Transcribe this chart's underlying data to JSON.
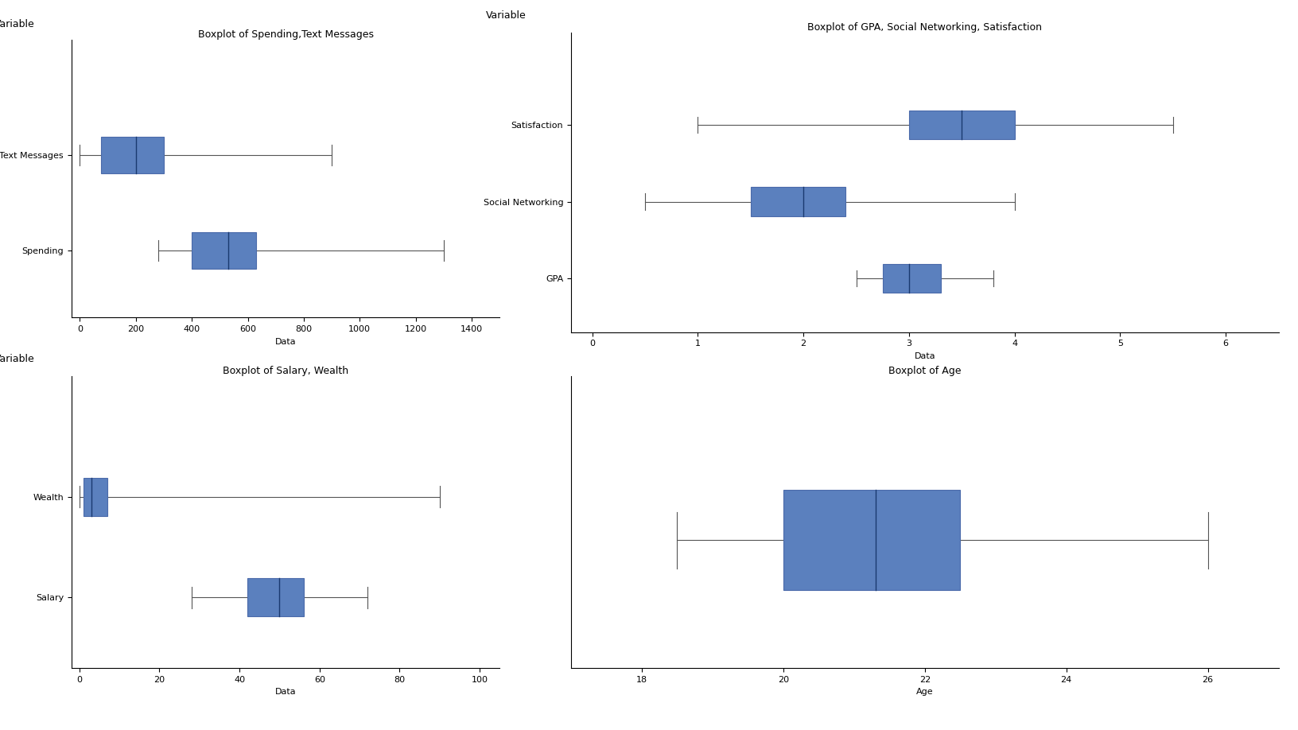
{
  "plot1": {
    "title": "Boxplot of Spending,Text Messages",
    "var_label": "Variable",
    "xlabel": "Data",
    "xlim": [
      -30,
      1500
    ],
    "xticks": [
      0,
      200,
      400,
      600,
      800,
      1000,
      1200,
      1400
    ],
    "boxes": [
      {
        "label": "Text Messages",
        "q1": 75,
        "median": 200,
        "q3": 300,
        "whisker_low": 0,
        "whisker_high": 900
      },
      {
        "label": "Spending",
        "q1": 400,
        "median": 530,
        "q3": 630,
        "whisker_low": 280,
        "whisker_high": 1300
      }
    ]
  },
  "plot2": {
    "title": "Boxplot of GPA, Social Networking, Satisfaction",
    "var_label": "Variable",
    "xlabel": "Data",
    "xlim": [
      -0.2,
      6.5
    ],
    "xticks": [
      0,
      1,
      2,
      3,
      4,
      5,
      6
    ],
    "boxes": [
      {
        "label": "Satisfaction",
        "q1": 3.0,
        "median": 3.5,
        "q3": 4.0,
        "whisker_low": 1.0,
        "whisker_high": 5.5
      },
      {
        "label": "Social Networking",
        "q1": 1.5,
        "median": 2.0,
        "q3": 2.4,
        "whisker_low": 0.5,
        "whisker_high": 4.0
      },
      {
        "label": "GPA",
        "q1": 2.75,
        "median": 3.0,
        "q3": 3.3,
        "whisker_low": 2.5,
        "whisker_high": 3.8
      }
    ]
  },
  "plot3": {
    "title": "Boxplot of Salary, Wealth",
    "var_label": "Variable",
    "xlabel": "Data",
    "xlim": [
      -2,
      105
    ],
    "xticks": [
      0,
      20,
      40,
      60,
      80,
      100
    ],
    "boxes": [
      {
        "label": "Wealth",
        "q1": 1,
        "median": 3,
        "q3": 7,
        "whisker_low": 0,
        "whisker_high": 90
      },
      {
        "label": "Salary",
        "q1": 42,
        "median": 50,
        "q3": 56,
        "whisker_low": 28,
        "whisker_high": 72
      }
    ]
  },
  "plot4": {
    "title": "Boxplot of Age",
    "xlabel": "Age",
    "xlim": [
      17,
      27
    ],
    "xticks": [
      18,
      20,
      22,
      24,
      26
    ],
    "boxes": [
      {
        "label": "Age",
        "q1": 20.0,
        "median": 21.3,
        "q3": 22.5,
        "whisker_low": 18.5,
        "whisker_high": 26.0
      }
    ]
  },
  "box_color": "#5b80be",
  "box_edge_color": "#4a6aaa",
  "median_color": "#1a3a70",
  "whisker_color": "#555555",
  "bg_color": "#ffffff",
  "title_fontsize": 9,
  "label_fontsize": 8,
  "tick_fontsize": 8,
  "var_label_fontsize": 9
}
